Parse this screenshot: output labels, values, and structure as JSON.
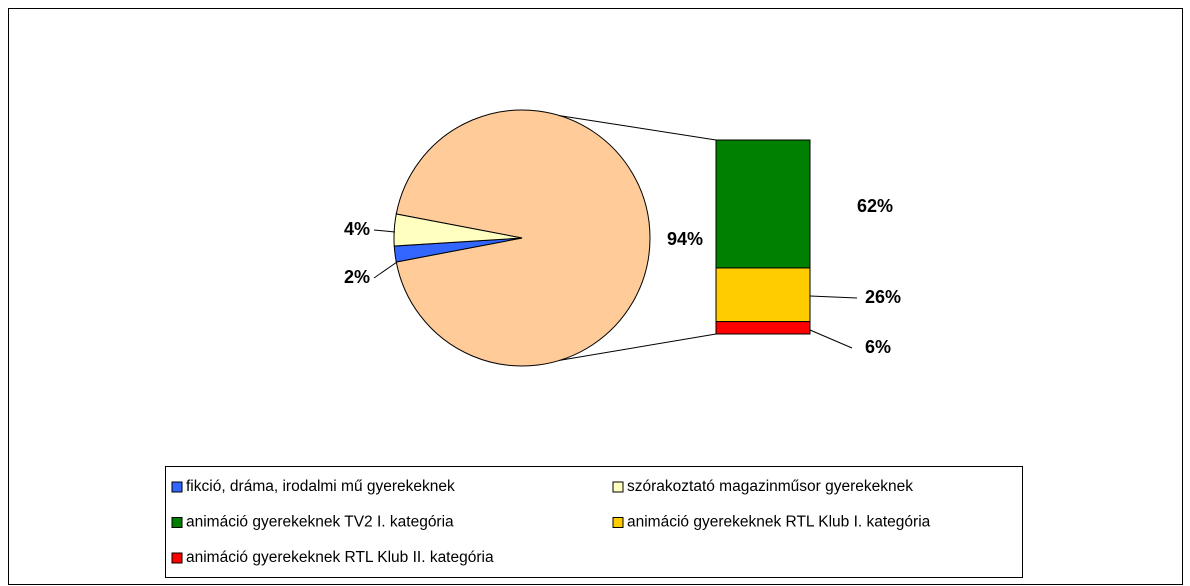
{
  "chart_data": {
    "type": "bar-of-pie",
    "pie": {
      "values": [
        2,
        4,
        94
      ],
      "value_labels": [
        "2%",
        "4%",
        "94%"
      ],
      "colors": [
        "#3366ff",
        "#ffffc0",
        "#ffcc99"
      ]
    },
    "bar": {
      "values": [
        62,
        26,
        6
      ],
      "value_labels": [
        "62%",
        "26%",
        "6%"
      ],
      "colors": [
        "#008000",
        "#ffcc00",
        "#ff0000"
      ]
    },
    "legend": [
      "fikció, dráma, irodalmi mű gyerekeknek",
      "szórakoztató magazinműsor gyerekeknek",
      "animáció gyerekeknek TV2 I. kategória",
      "animáció gyerekeknek RTL Klub I. kategória",
      "animáció gyerekeknek RTL Klub II. kategória"
    ]
  }
}
